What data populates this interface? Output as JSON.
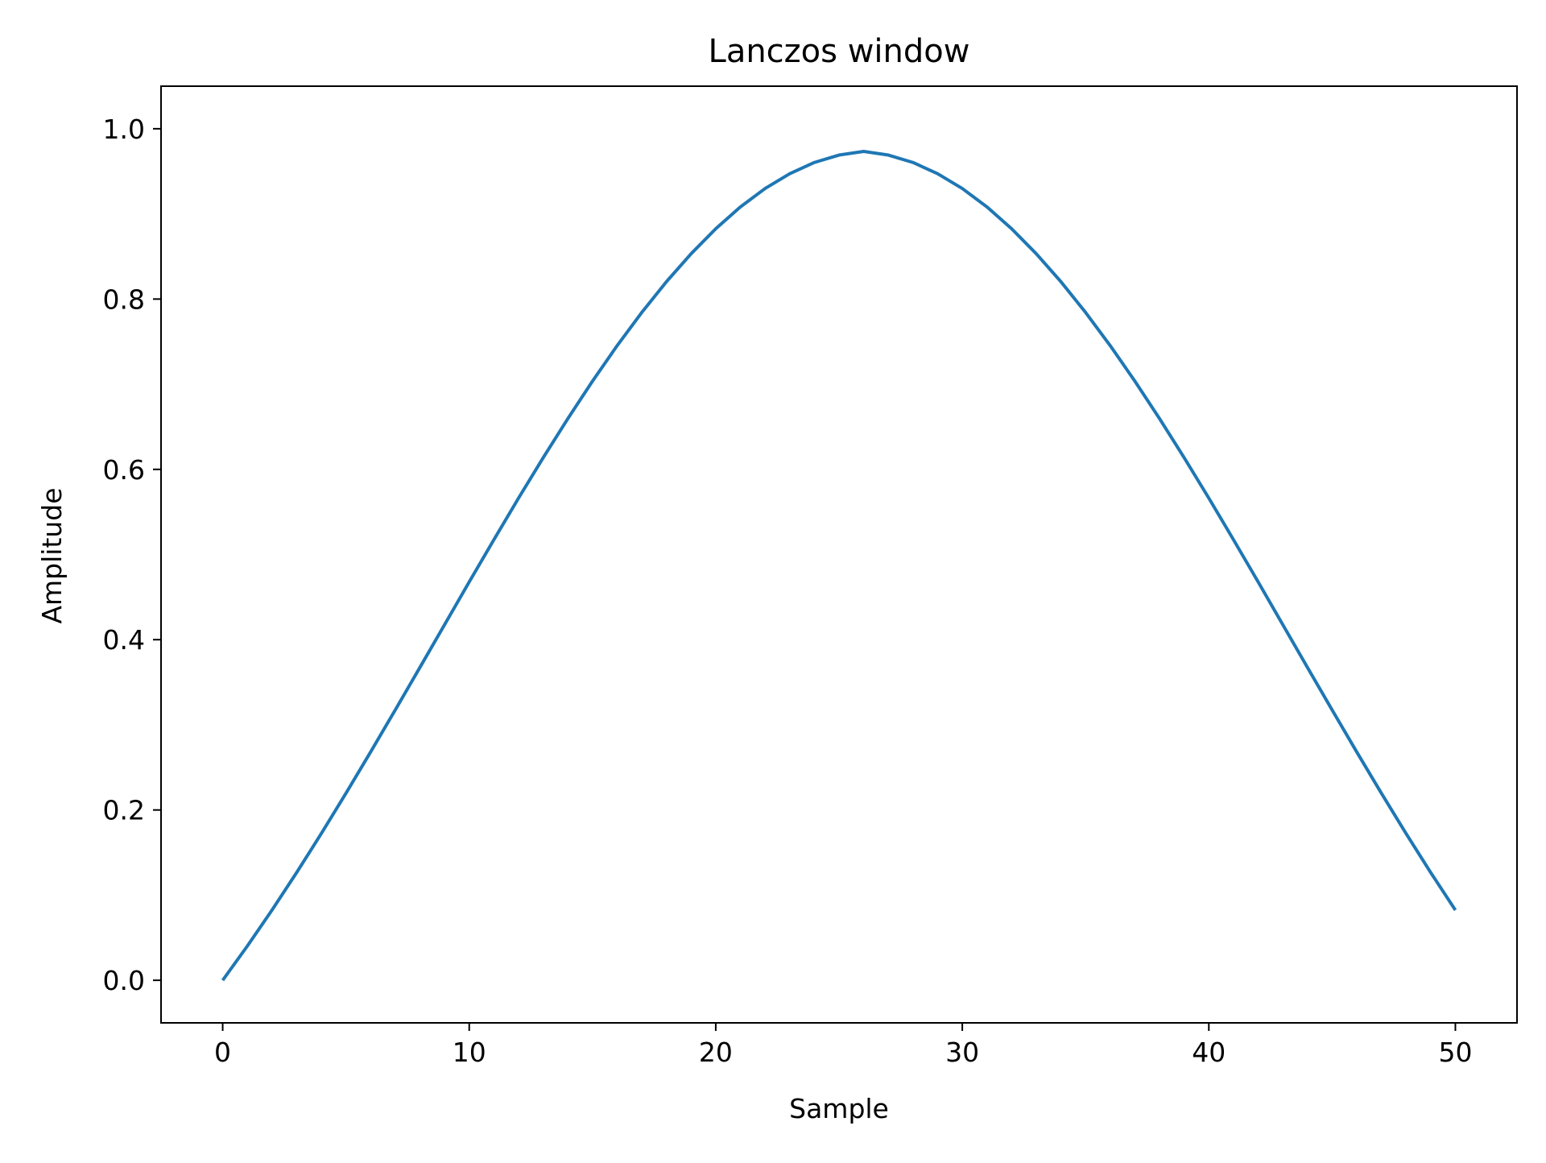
{
  "chart_data": {
    "type": "line",
    "title": "Lanczos window",
    "xlabel": "Sample",
    "ylabel": "Amplitude",
    "xlim": [
      -2.5,
      52.5
    ],
    "ylim": [
      -0.05,
      1.05
    ],
    "xticks": [
      0,
      10,
      20,
      30,
      40,
      50
    ],
    "xtick_labels": [
      "0",
      "10",
      "20",
      "30",
      "40",
      "50"
    ],
    "yticks": [
      0.0,
      0.2,
      0.4,
      0.6,
      0.8,
      1.0
    ],
    "ytick_labels": [
      "0.0",
      "0.2",
      "0.4",
      "0.6",
      "0.8",
      "1.0"
    ],
    "grid": false,
    "x": [
      0,
      1,
      2,
      3,
      4,
      5,
      6,
      7,
      8,
      9,
      10,
      11,
      12,
      13,
      14,
      15,
      16,
      17,
      18,
      19,
      20,
      21,
      22,
      23,
      24,
      25,
      26,
      27,
      28,
      29,
      30,
      31,
      32,
      33,
      34,
      35,
      36,
      37,
      38,
      39,
      40,
      41,
      42,
      43,
      44,
      45,
      46,
      47,
      48,
      49,
      50
    ],
    "series": [
      {
        "color": "#1f77b4",
        "values": [
          0.0,
          0.0402,
          0.0824,
          0.1265,
          0.1723,
          0.2196,
          0.2681,
          0.3175,
          0.3674,
          0.4176,
          0.4678,
          0.5174,
          0.5662,
          0.6137,
          0.6596,
          0.7036,
          0.7453,
          0.7843,
          0.8204,
          0.8532,
          0.8826,
          0.9082,
          0.9298,
          0.9472,
          0.9604,
          0.9691,
          0.9734,
          0.9691,
          0.9604,
          0.9472,
          0.9298,
          0.9082,
          0.8826,
          0.8532,
          0.8204,
          0.7843,
          0.7453,
          0.7036,
          0.6596,
          0.6137,
          0.5662,
          0.5174,
          0.4678,
          0.4176,
          0.3674,
          0.3175,
          0.2681,
          0.2196,
          0.1723,
          0.1265,
          0.0824
        ]
      }
    ]
  }
}
